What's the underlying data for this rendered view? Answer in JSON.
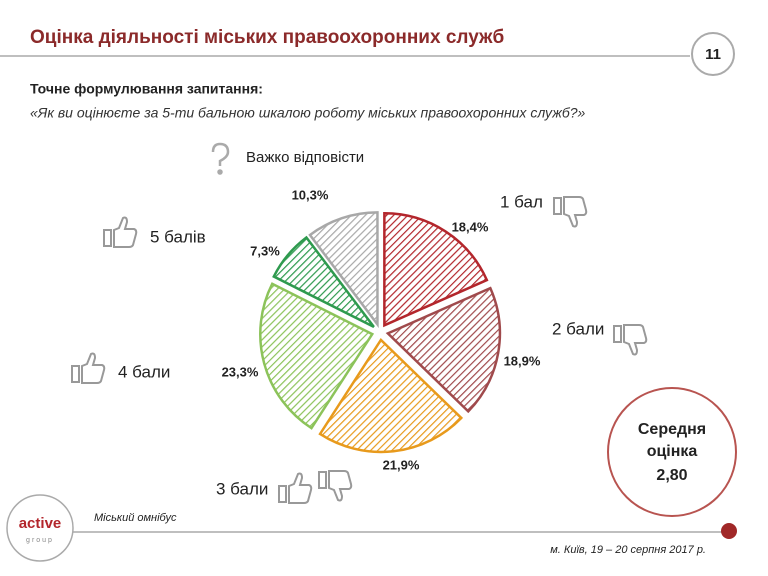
{
  "chart_data": {
    "type": "pie",
    "title": "Оцінка діяльності міських правоохоронних служб",
    "categories": [
      "1 бал",
      "2 бали",
      "3 бали",
      "4 бали",
      "5 балів",
      "Важко відповісти"
    ],
    "values": [
      18.4,
      18.9,
      21.9,
      23.3,
      7.3,
      10.3
    ],
    "value_labels": [
      "18,4%",
      "18,9%",
      "21,9%",
      "23,3%",
      "7,3%",
      "10,3%"
    ],
    "colors": [
      "#b3262c",
      "#a04a4c",
      "#e89a1c",
      "#8cc35a",
      "#2e9a4e",
      "#a8a8a8"
    ]
  },
  "slide": {
    "page": "11",
    "question_heading": "Точне формулювання запитання:",
    "question": "«Як ви оцінюєте за 5-ти бальною шкалою роботу міських правоохоронних служб?»",
    "mean_lines": [
      "Середня",
      "оцінка"
    ],
    "mean_value": "2,80",
    "source": "Міський омнібус",
    "footer": "м. Київ, 19 – 20 серпня 2017 р.",
    "logo": [
      "active",
      "group"
    ]
  }
}
